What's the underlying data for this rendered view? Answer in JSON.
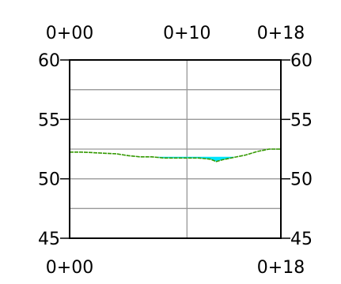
{
  "chart_data": {
    "type": "line",
    "title": "",
    "xlabel": "",
    "ylabel": "",
    "x_tick_labels_top": [
      {
        "x": 0,
        "label": "0+00"
      },
      {
        "x": 10,
        "label": "0+10"
      },
      {
        "x": 18,
        "label": "0+18"
      }
    ],
    "x_tick_labels_bottom": [
      {
        "x": 0,
        "label": "0+00"
      },
      {
        "x": 18,
        "label": "0+18"
      }
    ],
    "y_tick_labels": [
      {
        "y": 60,
        "label": "60"
      },
      {
        "y": 55,
        "label": "55"
      },
      {
        "y": 50,
        "label": "50"
      },
      {
        "y": 45,
        "label": "45"
      }
    ],
    "xlim": [
      0,
      18
    ],
    "ylim": [
      45,
      60
    ],
    "grid": true,
    "grid_x": [
      10
    ],
    "grid_y": [
      47.5,
      50,
      52.5,
      55,
      57.5
    ],
    "series": [
      {
        "x": [
          0,
          1,
          2,
          3,
          4,
          5,
          6,
          7,
          7.5,
          8,
          9,
          10,
          11,
          12,
          12.5,
          13,
          14,
          15,
          16,
          17,
          18
        ],
        "values": [
          52.25,
          52.25,
          52.2,
          52.15,
          52.1,
          51.95,
          51.85,
          51.85,
          51.8,
          51.75,
          51.75,
          51.75,
          51.75,
          51.65,
          51.45,
          51.6,
          51.8,
          52.0,
          52.3,
          52.5,
          52.5
        ]
      }
    ],
    "water_fill": {
      "level": 51.85,
      "x_range": [
        7.5,
        14.0
      ]
    },
    "colors": {
      "line": "#339900",
      "water": "#00e5ff",
      "grid": "#999999",
      "frame": "#000000"
    }
  }
}
